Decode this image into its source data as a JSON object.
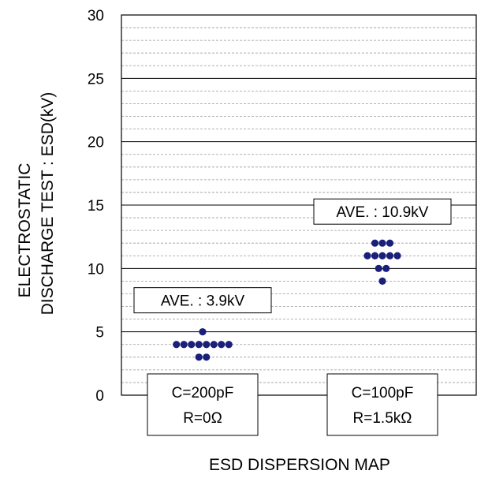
{
  "chart_data": {
    "type": "scatter",
    "title": "",
    "xlabel": "ESD DISPERSION MAP",
    "ylabel_lines": [
      "ELECTROSTATIC",
      "DISCHARGE TEST : ESD(kV)"
    ],
    "ylim": [
      0,
      30
    ],
    "yticks": [
      0,
      5,
      10,
      15,
      20,
      25,
      30
    ],
    "grid": {
      "major_step": 5,
      "minor_step": 1
    },
    "marker_color": "#1a1f7a",
    "groups": [
      {
        "category_lines": [
          "C=200pF",
          "R=0Ω"
        ],
        "average_label": "AVE. : 3.9kV",
        "average": 3.9,
        "points": [
          {
            "y": 5,
            "n": 1
          },
          {
            "y": 4,
            "n": 8
          },
          {
            "y": 3,
            "n": 2
          }
        ]
      },
      {
        "category_lines": [
          "C=100pF",
          "R=1.5kΩ"
        ],
        "average_label": "AVE. : 10.9kV",
        "average": 10.9,
        "points": [
          {
            "y": 12,
            "n": 3
          },
          {
            "y": 11,
            "n": 5
          },
          {
            "y": 10,
            "n": 2
          },
          {
            "y": 9,
            "n": 1
          }
        ]
      }
    ]
  }
}
